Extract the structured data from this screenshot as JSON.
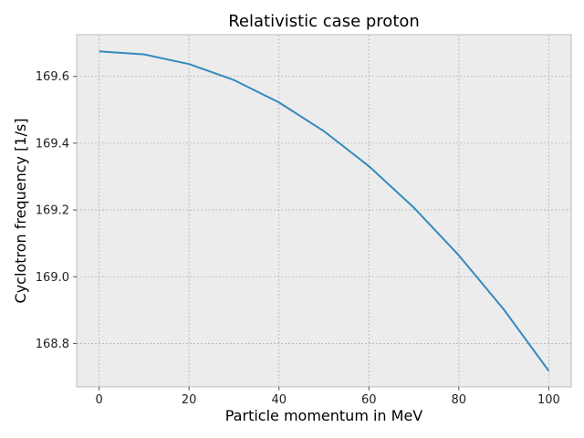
{
  "chart_data": {
    "type": "line",
    "title": "Relativistic case proton",
    "xlabel": "Particle momentum in MeV",
    "ylabel": "Cyclotron frequency [1/s]",
    "xlim": [
      -5,
      105
    ],
    "ylim": [
      168.67,
      169.725
    ],
    "grid": true,
    "xticks": [
      0,
      20,
      40,
      60,
      80,
      100
    ],
    "xtick_labels": [
      "0",
      "20",
      "40",
      "60",
      "80",
      "100"
    ],
    "yticks": [
      168.8,
      169.0,
      169.2,
      169.4,
      169.6
    ],
    "ytick_labels": [
      "168.8",
      "169.0",
      "169.2",
      "169.4",
      "169.6"
    ],
    "series": [
      {
        "color": "#348abd",
        "x": [
          0,
          10,
          20,
          30,
          40,
          50,
          60,
          70,
          80,
          90,
          100
        ],
        "y": [
          169.675,
          169.666,
          169.637,
          169.589,
          169.522,
          169.436,
          169.331,
          169.207,
          169.064,
          168.902,
          168.718
        ]
      }
    ]
  }
}
